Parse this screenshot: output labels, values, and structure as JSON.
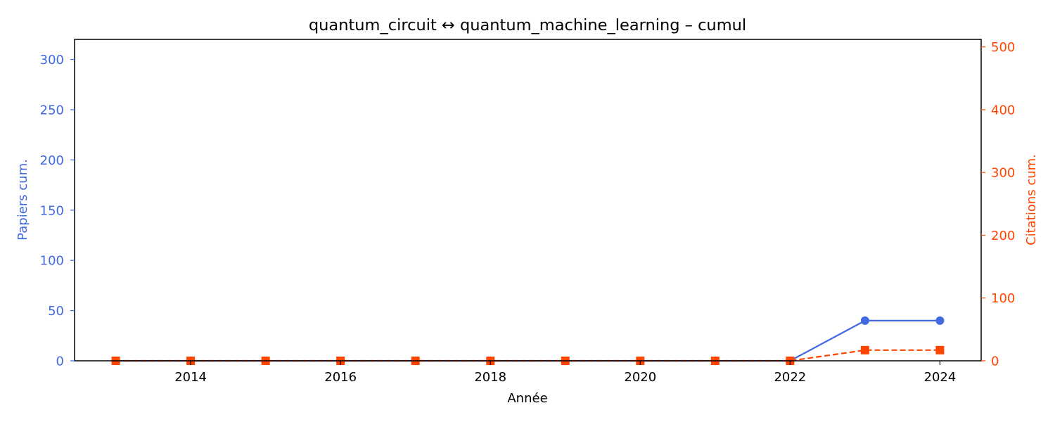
{
  "chart_data": {
    "type": "line",
    "title": "quantum_circuit  ↔  quantum_machine_learning  –  cumul",
    "xlabel": "Année",
    "ylabel_left": "Papiers cum.",
    "ylabel_right": "Citations cum.",
    "x": [
      2013,
      2014,
      2015,
      2016,
      2017,
      2018,
      2019,
      2020,
      2021,
      2022,
      2023,
      2024
    ],
    "xlim": [
      2012.45,
      2024.55
    ],
    "x_ticks": [
      2014,
      2016,
      2018,
      2020,
      2022,
      2024
    ],
    "ylim_left": [
      0,
      320
    ],
    "y_ticks_left": [
      0,
      50,
      100,
      150,
      200,
      250,
      300
    ],
    "ylim_right": [
      0,
      512
    ],
    "y_ticks_right": [
      0,
      100,
      200,
      300,
      400,
      500
    ],
    "grid": false,
    "series": [
      {
        "axis": "left",
        "color": "#4169e1",
        "marker": "circle",
        "linestyle": "solid",
        "values": [
          0,
          0,
          0,
          0,
          0,
          0,
          0,
          0,
          0,
          0,
          40,
          40
        ]
      },
      {
        "axis": "right",
        "color": "#ff4500",
        "marker": "square",
        "linestyle": "dashed",
        "values": [
          0,
          0,
          0,
          0,
          0,
          0,
          0,
          0,
          0,
          0,
          17,
          17
        ]
      }
    ]
  }
}
